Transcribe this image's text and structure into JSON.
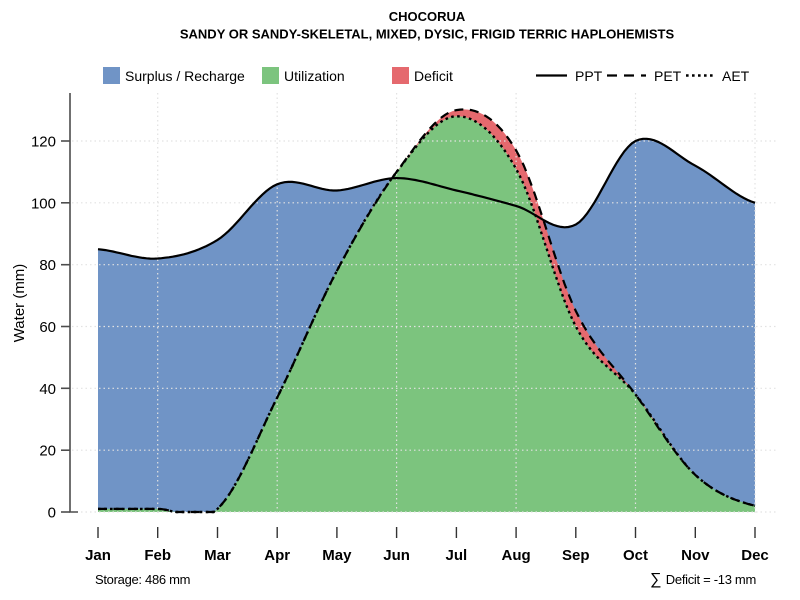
{
  "header": {
    "title": "CHOCORUA",
    "subtitle": "SANDY OR SANDY-SKELETAL, MIXED, DYSIC, FRIGID TERRIC HAPLOHEMISTS"
  },
  "legend": {
    "areas": [
      {
        "label": "Surplus / Recharge",
        "color": "#7094C6"
      },
      {
        "label": "Utilization",
        "color": "#7CC47E"
      },
      {
        "label": "Deficit",
        "color": "#E5696E"
      }
    ],
    "lines": [
      {
        "label": "PPT",
        "style": "solid"
      },
      {
        "label": "PET",
        "style": "dashed"
      },
      {
        "label": "AET",
        "style": "dotted"
      }
    ]
  },
  "chart_data": {
    "type": "area",
    "title": "CHOCORUA",
    "subtitle": "SANDY OR SANDY-SKELETAL, MIXED, DYSIC, FRIGID TERRIC HAPLOHEMISTS",
    "ylabel": "Water (mm)",
    "xlabel": "",
    "categories": [
      "Jan",
      "Feb",
      "Mar",
      "Apr",
      "May",
      "Jun",
      "Jul",
      "Aug",
      "Sep",
      "Oct",
      "Nov",
      "Dec"
    ],
    "series": [
      {
        "name": "PPT",
        "style": "solid",
        "values": [
          85,
          82,
          88,
          106,
          104,
          108,
          104,
          99,
          93,
          120,
          112,
          100
        ]
      },
      {
        "name": "PET",
        "style": "dashed",
        "values": [
          1,
          1,
          1,
          37,
          78,
          110,
          130,
          117,
          65,
          38,
          12,
          2
        ]
      },
      {
        "name": "AET",
        "style": "dotted",
        "values": [
          1,
          1,
          1,
          37,
          78,
          110,
          128,
          111,
          60,
          38,
          12,
          2
        ]
      }
    ],
    "fills": {
      "surplus_recharge": "between PET and PPT where PPT > PET",
      "utilization": "area under AET",
      "deficit": "between AET and PET where PET > AET"
    },
    "y_ticks": [
      0,
      20,
      40,
      60,
      80,
      100,
      120
    ],
    "ylim": [
      0,
      135
    ],
    "grid": "light dotted; horizontal at every y tick, vertical at alternate months",
    "x_grid_categories": [
      "Feb",
      "Apr",
      "Jun",
      "Aug",
      "Oct",
      "Dec"
    ],
    "legend_position": "top"
  },
  "footer": {
    "storage_note": "Storage: 486 mm",
    "deficit_sigma": "∑",
    "deficit_note": " Deficit = -13 mm"
  },
  "colors": {
    "surplus": "#7094C6",
    "utilization": "#7CC47E",
    "deficit": "#E5696E",
    "line": "#000000",
    "grid": "#E2E2E2",
    "axis": "#4D4D4D"
  }
}
